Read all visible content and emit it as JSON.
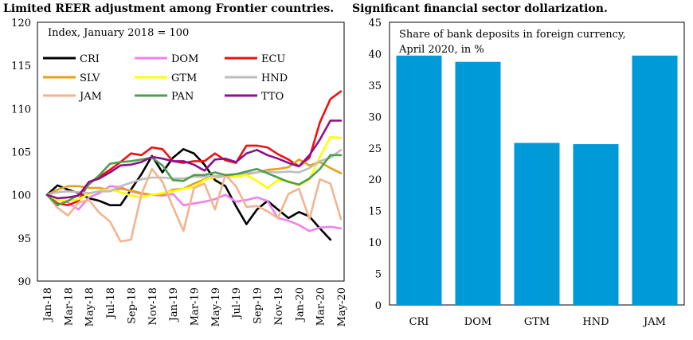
{
  "left": {
    "title": "Limited REER adjustment among Frontier countries.",
    "chart_data": {
      "type": "line",
      "title": "Limited REER adjustment among Frontier countries.",
      "annotation": "Index, January 2018 = 100",
      "ylim": [
        90,
        120
      ],
      "yticks": [
        90,
        95,
        100,
        105,
        110,
        115,
        120
      ],
      "x": [
        "Jan-18",
        "Feb-18",
        "Mar-18",
        "Apr-18",
        "May-18",
        "Jun-18",
        "Jul-18",
        "Aug-18",
        "Sep-18",
        "Oct-18",
        "Nov-18",
        "Dec-18",
        "Jan-19",
        "Feb-19",
        "Mar-19",
        "Apr-19",
        "May-19",
        "Jun-19",
        "Jul-19",
        "Aug-19",
        "Sep-19",
        "Oct-19",
        "Nov-19",
        "Dec-19",
        "Jan-20",
        "Feb-20",
        "Mar-20",
        "Apr-20",
        "May-20"
      ],
      "xtick_labels": [
        "Jan-18",
        "Mar-18",
        "May-18",
        "Jul-18",
        "Sep-18",
        "Nov-18",
        "Jan-19",
        "Mar-19",
        "May-19",
        "Jul-19",
        "Sep-19",
        "Nov-19",
        "Jan-20",
        "Mar-20",
        "May-20"
      ],
      "legend_position": "top",
      "grid": false,
      "series": [
        {
          "name": "CRI",
          "color": "#000000",
          "values": [
            100,
            101.1,
            100.6,
            100.2,
            99.6,
            99.3,
            98.8,
            98.8,
            100.6,
            102.4,
            104.5,
            102.6,
            104.3,
            105.3,
            104.8,
            103.5,
            101.7,
            101.0,
            98.7,
            96.6,
            98.3,
            99.3,
            98.3,
            97.3,
            98.0,
            97.5,
            96.1,
            94.8,
            null
          ]
        },
        {
          "name": "DOM",
          "color": "#f080f0",
          "values": [
            100,
            99.5,
            99.1,
            98.3,
            99.7,
            100.2,
            101.0,
            100.9,
            100.4,
            100.1,
            100.0,
            99.9,
            100.1,
            98.8,
            99.0,
            99.2,
            99.5,
            100.0,
            99.2,
            99.4,
            99.7,
            99.3,
            97.3,
            97.0,
            96.5,
            95.8,
            96.2,
            96.3,
            96.1
          ]
        },
        {
          "name": "ECU",
          "color": "#ee1111",
          "values": [
            100,
            99.0,
            98.8,
            99.3,
            101.4,
            102.1,
            102.9,
            103.8,
            104.8,
            104.6,
            105.5,
            105.3,
            103.9,
            103.7,
            103.9,
            103.9,
            104.8,
            104.0,
            103.7,
            105.7,
            105.7,
            105.5,
            104.7,
            104.1,
            103.3,
            104.3,
            108.4,
            111.1,
            112.0
          ]
        },
        {
          "name": "SLV",
          "color": "#e3a21a",
          "values": [
            100,
            100.6,
            101.0,
            101.0,
            100.8,
            100.8,
            100.5,
            100.7,
            100.5,
            100.2,
            100.0,
            100.0,
            100.6,
            100.7,
            101.3,
            101.8,
            102.0,
            102.2,
            102.1,
            102.4,
            102.6,
            102.9,
            103.0,
            103.2,
            104.1,
            103.4,
            103.8,
            103.1,
            102.5
          ]
        },
        {
          "name": "GTM",
          "color": "#ffff00",
          "values": [
            100,
            99.4,
            99.3,
            99.5,
            100.1,
            100.5,
            100.6,
            100.3,
            99.9,
            99.7,
            100.0,
            100.2,
            100.4,
            100.7,
            100.9,
            101.7,
            102.1,
            102.3,
            102.1,
            102.3,
            101.6,
            100.8,
            101.7,
            101.6,
            101.1,
            101.8,
            104.4,
            106.7,
            106.6
          ]
        },
        {
          "name": "HND",
          "color": "#bdbdbd",
          "values": [
            100,
            100.3,
            100.4,
            100.3,
            100.2,
            100.4,
            100.4,
            101.0,
            101.4,
            101.8,
            102.0,
            102.0,
            101.9,
            101.9,
            102.1,
            102.1,
            102.2,
            102.2,
            102.4,
            102.5,
            102.6,
            102.7,
            102.6,
            102.7,
            102.6,
            103.1,
            103.9,
            104.3,
            105.2
          ]
        },
        {
          "name": "JAM",
          "color": "#f2b48e",
          "values": [
            100,
            98.5,
            97.6,
            99.1,
            99.4,
            97.9,
            96.9,
            94.6,
            94.8,
            100.1,
            103.0,
            101.5,
            98.6,
            95.8,
            100.8,
            101.3,
            98.3,
            102.3,
            101.0,
            98.6,
            98.7,
            98.1,
            97.3,
            100.1,
            100.7,
            97.2,
            101.8,
            101.3,
            97.2
          ]
        },
        {
          "name": "PAN",
          "color": "#4e9e4e",
          "values": [
            100,
            98.8,
            99.3,
            100.0,
            101.2,
            102.3,
            103.6,
            103.8,
            103.9,
            104.1,
            104.3,
            103.4,
            101.7,
            101.6,
            102.3,
            102.3,
            102.6,
            102.3,
            102.4,
            102.7,
            103.0,
            102.5,
            102.0,
            101.5,
            101.2,
            101.9,
            103.0,
            104.6,
            104.6
          ]
        },
        {
          "name": "TTO",
          "color": "#8b108b",
          "values": [
            100,
            99.6,
            99.7,
            99.9,
            101.5,
            101.9,
            102.6,
            103.4,
            103.5,
            103.8,
            104.4,
            104.2,
            103.9,
            103.9,
            103.5,
            102.8,
            104.1,
            104.2,
            103.8,
            104.8,
            105.2,
            104.6,
            104.2,
            103.7,
            103.3,
            104.6,
            106.4,
            108.6,
            108.6
          ]
        }
      ]
    }
  },
  "right": {
    "title": "Significant financial sector dollarization.",
    "chart_data": {
      "type": "bar",
      "title": "Significant financial sector dollarization.",
      "annotation_lines": [
        "Share of bank deposits in foreign currency,",
        "April 2020, in %"
      ],
      "categories": [
        "CRI",
        "DOM",
        "GTM",
        "HND",
        "JAM"
      ],
      "values": [
        39.7,
        38.7,
        25.8,
        25.6,
        39.7
      ],
      "ylim": [
        0,
        45
      ],
      "yticks": [
        0,
        5,
        10,
        15,
        20,
        25,
        30,
        35,
        40,
        45
      ],
      "bar_color": "#009ad8",
      "grid": false
    }
  }
}
